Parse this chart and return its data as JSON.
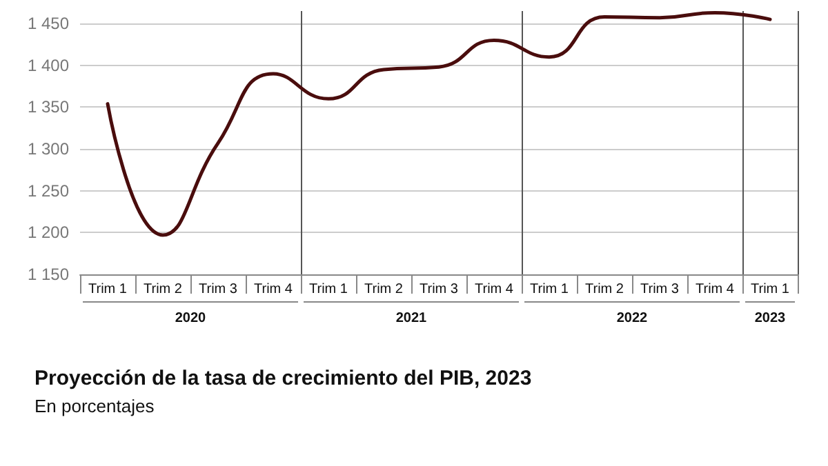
{
  "chart_data": {
    "type": "line",
    "title": "Proyección de la tasa de crecimiento del PIB, 2023",
    "subtitle": "En porcentajes",
    "categories": [
      "Trim 1",
      "Trim 2",
      "Trim 3",
      "Trim 4",
      "Trim 1",
      "Trim 2",
      "Trim 3",
      "Trim 4",
      "Trim 1",
      "Trim 2",
      "Trim 3",
      "Trim 4",
      "Trim 1"
    ],
    "annotations": [
      "2020",
      "2021",
      "2022",
      "2023"
    ],
    "series": [
      {
        "color": "#4a0d0d",
        "values": [
          1354,
          1197,
          1307,
          1390,
          1360,
          1395,
          1398,
          1430,
          1410,
          1458,
          1457,
          1463,
          1455
        ]
      }
    ],
    "ylim": [
      1150,
      1465
    ],
    "yticks": [
      {
        "value": 1150,
        "label": "1 150"
      },
      {
        "value": 1200,
        "label": "1 200"
      },
      {
        "value": 1250,
        "label": "1 250"
      },
      {
        "value": 1300,
        "label": "1 300"
      },
      {
        "value": 1350,
        "label": "1 350"
      },
      {
        "value": 1400,
        "label": "1 400"
      },
      {
        "value": 1450,
        "label": "1 450"
      }
    ],
    "grid": "y",
    "marker": "none",
    "line_style": "solid"
  }
}
